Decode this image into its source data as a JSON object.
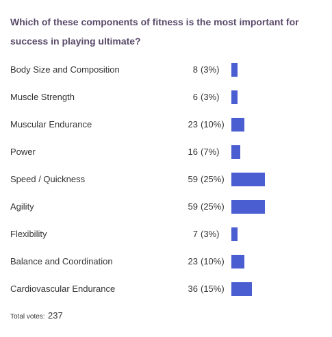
{
  "question": "Which of these components of fitness is the most important for success in playing ultimate?",
  "chart_data": {
    "type": "bar",
    "orientation": "horizontal",
    "categories": [
      "Body Size and Composition",
      "Muscle Strength",
      "Muscular Endurance",
      "Power",
      "Speed / Quickness",
      "Agility",
      "Flexibility",
      "Balance and Coordination",
      "Cardiovascular Endurance"
    ],
    "values": [
      8,
      6,
      23,
      16,
      59,
      59,
      7,
      23,
      36
    ],
    "percent_labels": [
      "(3%)",
      "(3%)",
      "(10%)",
      "(7%)",
      "(25%)",
      "(25%)",
      "(3%)",
      "(10%)",
      "(15%)"
    ],
    "title": "Which of these components of fitness is the most important for success in playing ultimate?",
    "bar_color": "#4b5ed1"
  },
  "footer": {
    "label": "Total votes:",
    "total": "237"
  }
}
